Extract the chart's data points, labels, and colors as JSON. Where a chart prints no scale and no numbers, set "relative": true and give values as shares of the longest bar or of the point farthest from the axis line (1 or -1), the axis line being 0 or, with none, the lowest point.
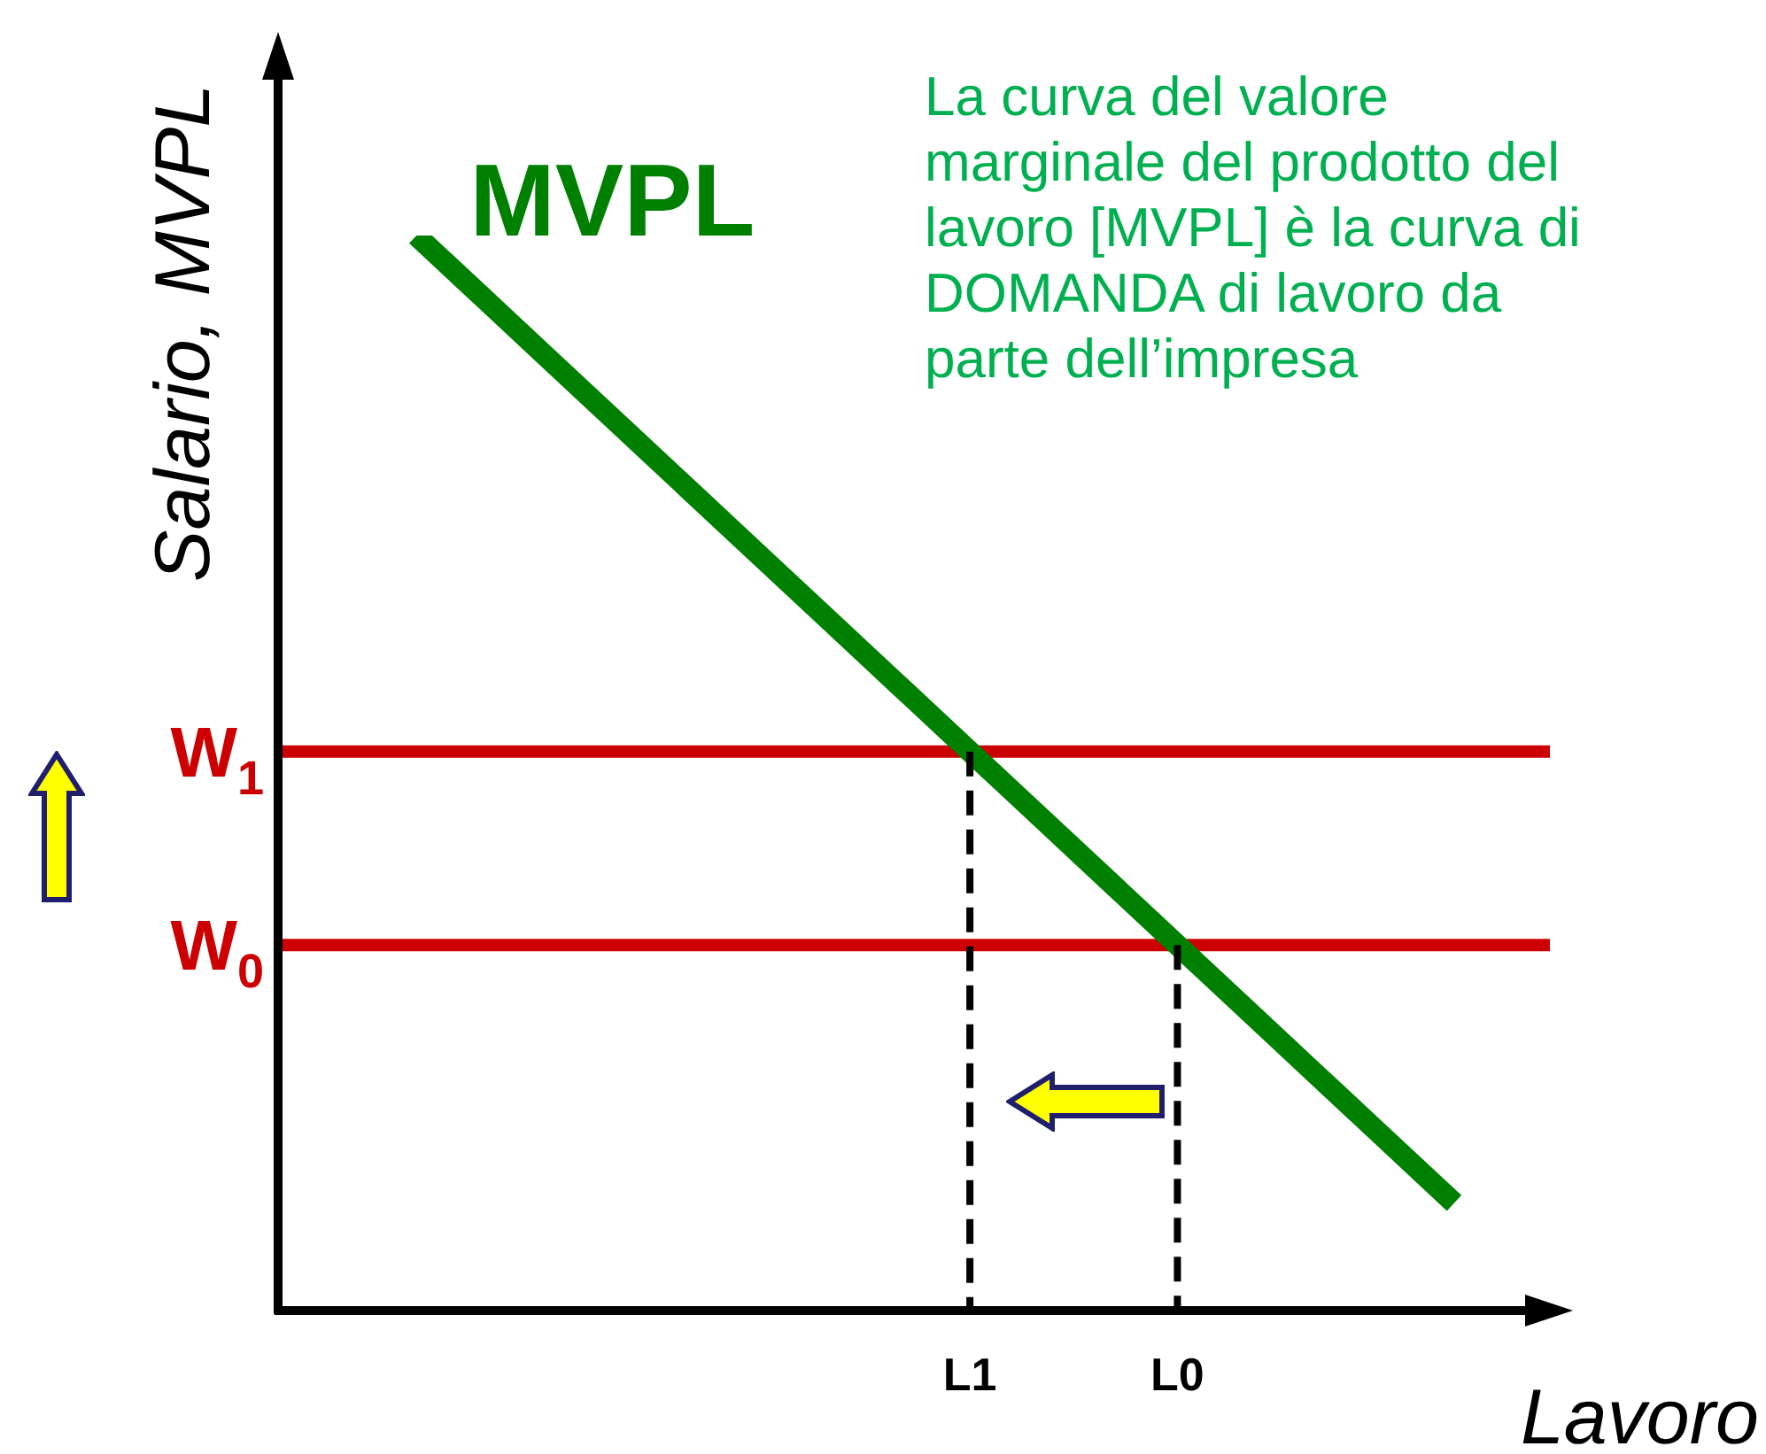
{
  "chart_data": {
    "type": "line",
    "relative": true,
    "xlabel": "Lavoro",
    "ylabel": "Salario, MVPL",
    "categories": [
      null,
      null,
      null,
      null,
      null,
      null,
      null,
      null,
      null,
      null,
      "L1",
      null,
      null,
      "L0",
      null,
      null,
      null,
      null,
      null
    ],
    "series": [
      {
        "name": "MVPL",
        "color": "#008000",
        "values": [
          null,
          null,
          1,
          0.94,
          0.88,
          0.82,
          0.76,
          0.7,
          0.64,
          0.58,
          0.52,
          0.46,
          0.4,
          0.34,
          0.28,
          0.22,
          0.16,
          0.1,
          null
        ]
      },
      {
        "color": "#000000",
        "x": [
          "L1",
          "L1"
        ],
        "values": [
          0,
          0.52
        ],
        "line_style": "dashed"
      },
      {
        "color": "#000000",
        "x": [
          "L0",
          "L0"
        ],
        "values": [
          0,
          0.34
        ],
        "line_style": "dashed"
      }
    ],
    "ref_lines": [
      {
        "axis": "y",
        "value": 0.52,
        "label": "W$_{1}$",
        "color": "#cc0000"
      },
      {
        "axis": "y",
        "value": 0.34,
        "label": "W$_{0}$",
        "color": "#cc0000"
      }
    ],
    "annotations": [
      "La curva del valore marginale del prodotto del lavoro [MVPL] è la curva di DOMANDA di lavoro da parte dell’impresa"
    ],
    "legend": false,
    "marker": "none"
  }
}
